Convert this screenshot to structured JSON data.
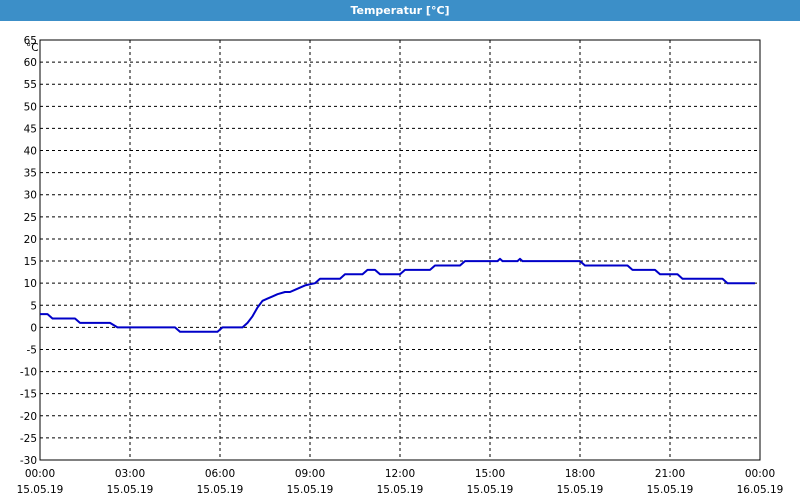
{
  "title": "Temperatur [°C]",
  "colors": {
    "titlebar": "#3c8fc8",
    "line": "#0000c8",
    "grid": "#000000",
    "background": "#ffffff"
  },
  "chart_data": {
    "type": "line",
    "title": "Temperatur [°C]",
    "ylabel": "°C",
    "xlabel": "",
    "ylim": [
      -30,
      65
    ],
    "yticks": [
      65,
      60,
      55,
      50,
      45,
      40,
      35,
      30,
      25,
      20,
      15,
      10,
      5,
      0,
      -5,
      -10,
      -15,
      -20,
      -25,
      -30
    ],
    "xlim": [
      "15.05.19 00:00",
      "16.05.19 00:00"
    ],
    "xticks": [
      {
        "time": "00:00",
        "date": "15.05.19"
      },
      {
        "time": "03:00",
        "date": "15.05.19"
      },
      {
        "time": "06:00",
        "date": "15.05.19"
      },
      {
        "time": "09:00",
        "date": "15.05.19"
      },
      {
        "time": "12:00",
        "date": "15.05.19"
      },
      {
        "time": "15:00",
        "date": "15.05.19"
      },
      {
        "time": "18:00",
        "date": "15.05.19"
      },
      {
        "time": "21:00",
        "date": "15.05.19"
      },
      {
        "time": "00:00",
        "date": "16.05.19"
      }
    ],
    "grid": true,
    "series": [
      {
        "x": [
          "15.05.19 00:00",
          "15.05.19 00:15",
          "15.05.19 00:25",
          "15.05.19 01:10",
          "15.05.19 01:20",
          "15.05.19 02:20",
          "15.05.19 02:35",
          "15.05.19 04:30",
          "15.05.19 04:40",
          "15.05.19 05:55",
          "15.05.19 06:05",
          "15.05.19 06:45",
          "15.05.19 06:55",
          "15.05.19 07:05",
          "15.05.19 07:15",
          "15.05.19 07:25",
          "15.05.19 07:35",
          "15.05.19 07:45",
          "15.05.19 07:55",
          "15.05.19 08:10",
          "15.05.19 08:20",
          "15.05.19 08:30",
          "15.05.19 08:50",
          "15.05.19 09:10",
          "15.05.19 09:20",
          "15.05.19 10:00",
          "15.05.19 10:10",
          "15.05.19 10:45",
          "15.05.19 10:55",
          "15.05.19 11:10",
          "15.05.19 11:20",
          "15.05.19 12:00",
          "15.05.19 12:10",
          "15.05.19 13:00",
          "15.05.19 13:10",
          "15.05.19 14:00",
          "15.05.19 14:10",
          "15.05.19 15:15",
          "15.05.19 15:20",
          "15.05.19 15:25",
          "15.05.19 15:55",
          "15.05.19 16:00",
          "15.05.19 16:05",
          "15.05.19 18:00",
          "15.05.19 18:10",
          "15.05.19 19:35",
          "15.05.19 19:45",
          "15.05.19 20:30",
          "15.05.19 20:40",
          "15.05.19 21:15",
          "15.05.19 21:25",
          "15.05.19 22:45",
          "15.05.19 22:55",
          "15.05.19 23:50"
        ],
        "values": [
          3,
          3,
          2,
          2,
          1,
          1,
          0,
          0,
          -1,
          -1,
          0,
          0,
          1,
          2.5,
          4.5,
          6,
          6.5,
          7,
          7.5,
          8,
          8,
          8.5,
          9.5,
          10,
          11,
          11,
          12,
          12,
          13,
          13,
          12,
          12,
          13,
          13,
          14,
          14,
          15,
          15,
          15.5,
          15,
          15,
          15.5,
          15,
          15,
          14,
          14,
          13,
          13,
          12,
          12,
          11,
          11,
          10,
          10
        ]
      }
    ]
  }
}
